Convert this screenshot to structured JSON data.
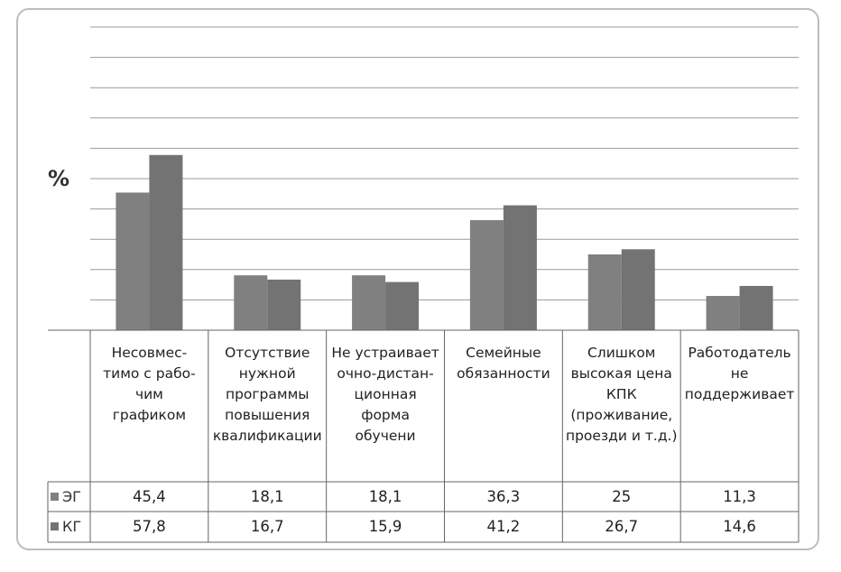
{
  "chart_data": {
    "type": "bar",
    "ylabel": "%",
    "ylim": [
      0,
      100
    ],
    "grid": true,
    "categories": [
      "Несовмес-\nтимо с рабо-\nчим\nграфиком",
      "Отсутствие\nнужной\nпрограммы\nповышения\nквалификации",
      "Не устраивает\nочно-дистан-\nционная\nформа\nобучени",
      "Семейные\nобязанности",
      "Слишком\nвысокая цена\nКПК\n(проживание,\nпроезди и т.д.)",
      "Работодатель\nне\nподдерживает"
    ],
    "series": [
      {
        "name": "ЭГ",
        "values": [
          45.4,
          18.1,
          18.1,
          36.3,
          25,
          11.3
        ],
        "labels": [
          "45,4",
          "18,1",
          "18,1",
          "36,3",
          "25",
          "11,3"
        ],
        "color": "#808080"
      },
      {
        "name": "КГ",
        "values": [
          57.8,
          16.7,
          15.9,
          41.2,
          26.7,
          14.6
        ],
        "labels": [
          "57,8",
          "16,7",
          "15,9",
          "41,2",
          "26,7",
          "14,6"
        ],
        "color": "#737373"
      }
    ]
  }
}
